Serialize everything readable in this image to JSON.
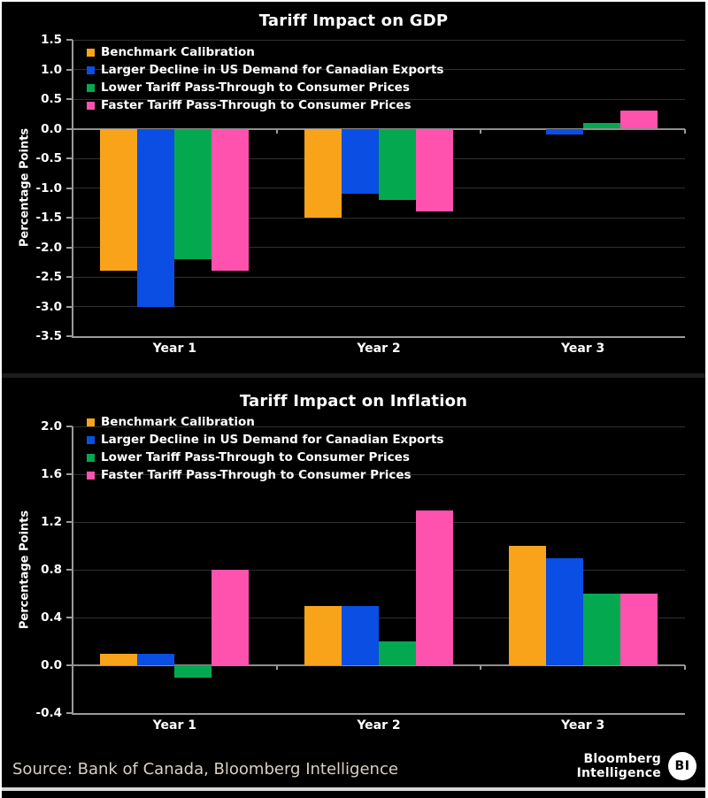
{
  "chart_data": [
    {
      "type": "bar",
      "title": "Tariff Impact on GDP",
      "ylabel": "Percentage Points",
      "categories": [
        "Year 1",
        "Year 2",
        "Year 3"
      ],
      "series": [
        {
          "name": "Benchmark Calibration",
          "color": "#F9A31B",
          "values": [
            -2.4,
            -1.5,
            0.0
          ]
        },
        {
          "name": "Larger Decline in US Demand for Canadian Exports",
          "color": "#0A4EE4",
          "values": [
            -3.0,
            -1.1,
            -0.1
          ]
        },
        {
          "name": "Lower Tariff Pass-Through to Consumer Prices",
          "color": "#04A94F",
          "values": [
            -2.2,
            -1.2,
            0.1
          ]
        },
        {
          "name": "Faster Tariff Pass-Through to Consumer Prices",
          "color": "#FF52AF",
          "values": [
            -2.4,
            -1.4,
            0.3
          ]
        }
      ],
      "ylim": [
        -3.5,
        1.5
      ],
      "yticks": [
        1.5,
        1.0,
        0.5,
        0.0,
        -0.5,
        -1.0,
        -1.5,
        -2.0,
        -2.5,
        -3.0,
        -3.5
      ],
      "grid": true,
      "legend_position": "upper-left"
    },
    {
      "type": "bar",
      "title": "Tariff Impact on Inflation",
      "ylabel": "Percentage Points",
      "categories": [
        "Year 1",
        "Year 2",
        "Year 3"
      ],
      "series": [
        {
          "name": "Benchmark Calibration",
          "color": "#F9A31B",
          "values": [
            0.1,
            0.5,
            1.0
          ]
        },
        {
          "name": "Larger Decline in US Demand for Canadian Exports",
          "color": "#0A4EE4",
          "values": [
            0.1,
            0.5,
            0.9
          ]
        },
        {
          "name": "Lower Tariff Pass-Through to Consumer Prices",
          "color": "#04A94F",
          "values": [
            -0.1,
            0.2,
            0.6
          ]
        },
        {
          "name": "Faster Tariff Pass-Through to Consumer Prices",
          "color": "#FF52AF",
          "values": [
            0.8,
            1.3,
            0.6
          ]
        }
      ],
      "ylim": [
        -0.4,
        2.0
      ],
      "yticks": [
        2.0,
        1.6,
        1.2,
        0.8,
        0.4,
        0.0,
        -0.4
      ],
      "grid": true,
      "legend_position": "upper-left"
    }
  ],
  "footer": {
    "source": "Source: Bank of Canada, Bloomberg Intelligence",
    "brand_line1": "Bloomberg",
    "brand_line2": "Intelligence",
    "brand_badge": "BI"
  },
  "styles": {
    "background": "#000000",
    "text": "#FFFFFF",
    "gridline": "#2F2F2F",
    "zero_line": "#8F8F8F",
    "axis": "#9A9A9A",
    "source_text": "#D8D0C6"
  }
}
